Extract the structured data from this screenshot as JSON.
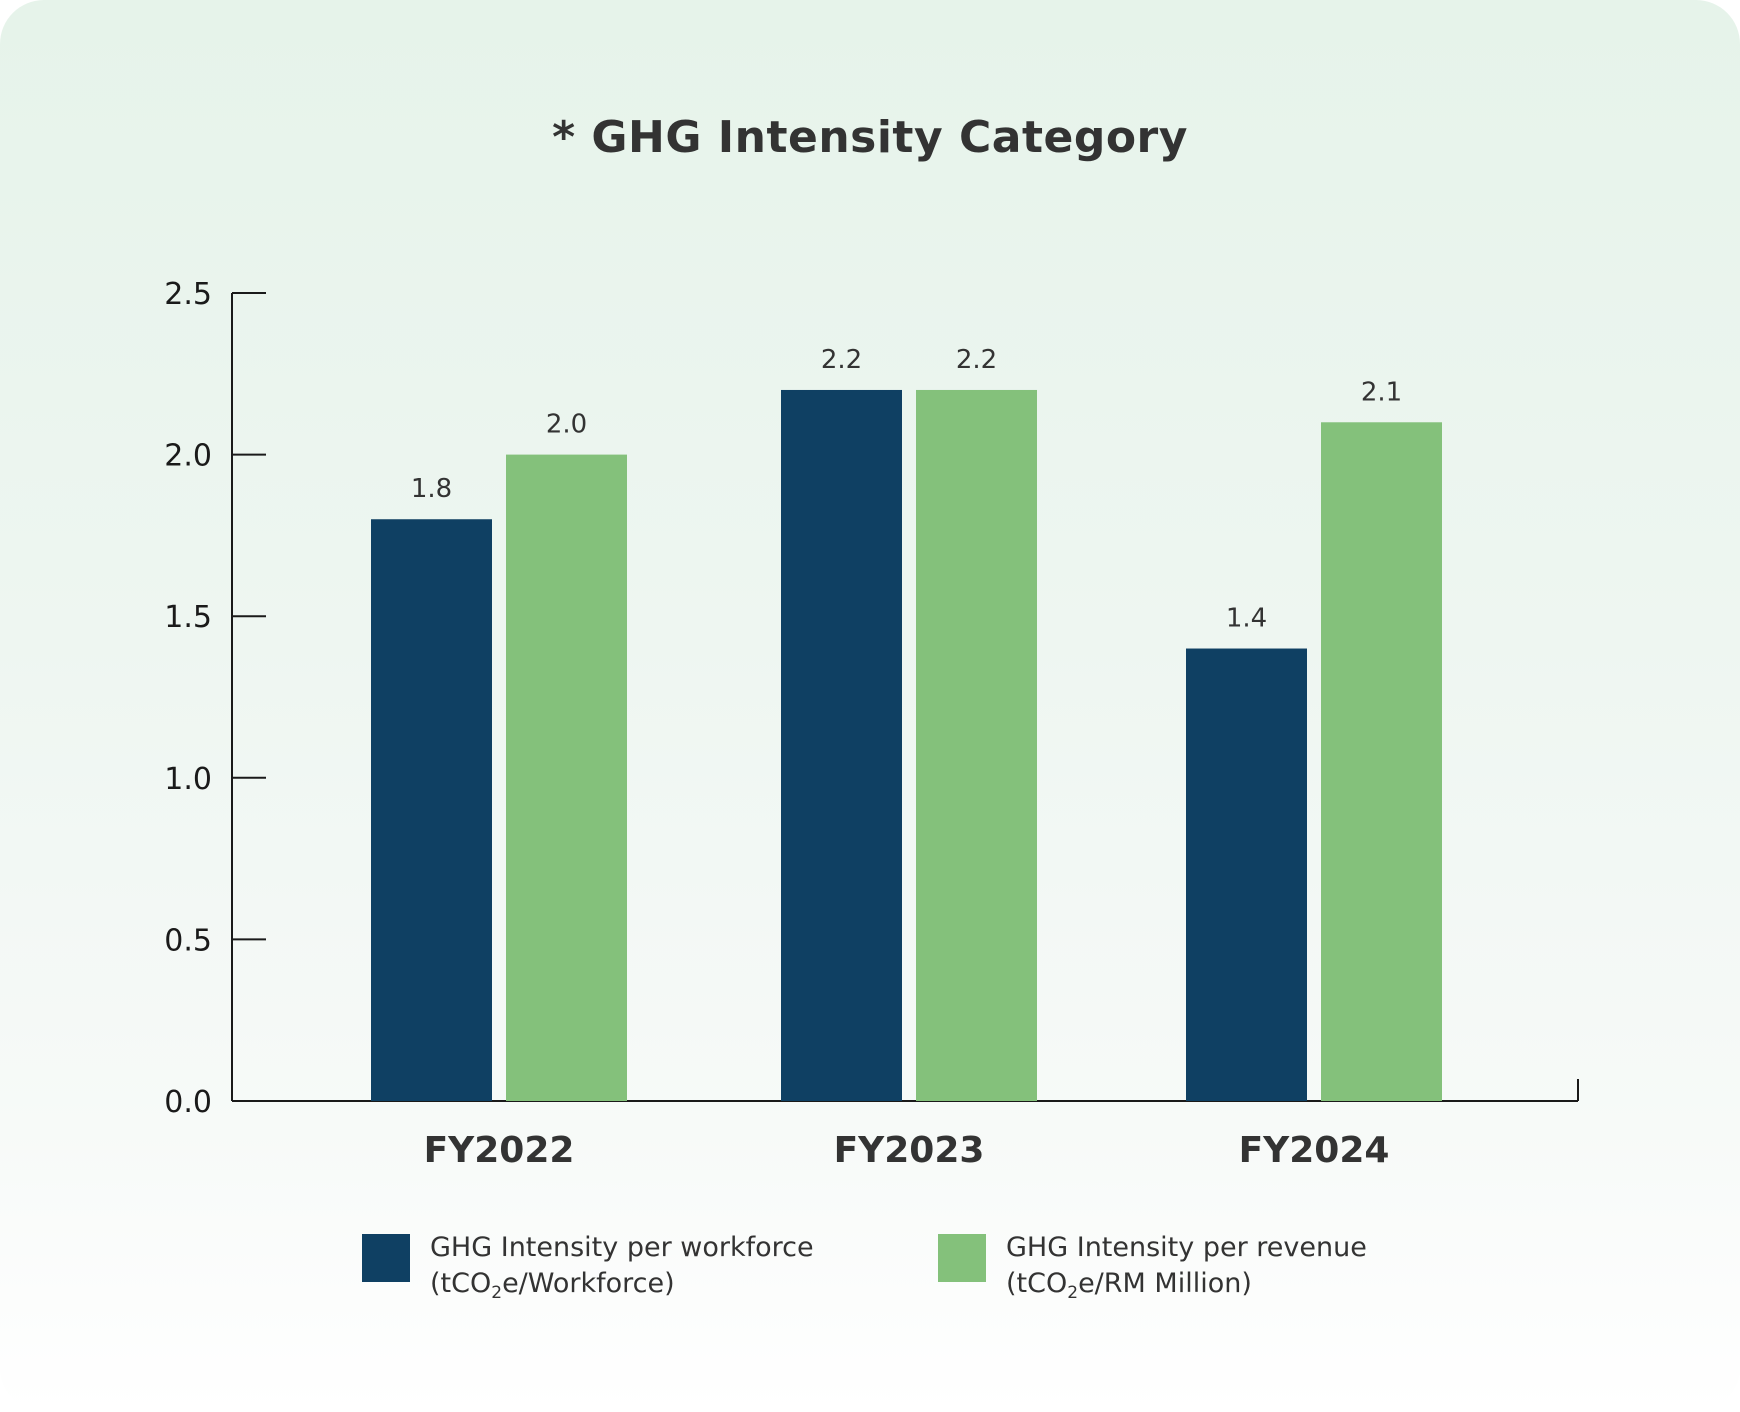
{
  "chart_data": {
    "type": "bar",
    "title": "* GHG Intensity Category",
    "categories": [
      "FY2022",
      "FY2023",
      "FY2024"
    ],
    "series": [
      {
        "name": "GHG Intensity per workforce (tCO2e/Workforce)",
        "color": "#0f4063",
        "values": [
          1.8,
          2.2,
          1.4
        ],
        "labels": [
          "1.8",
          "2.2",
          "1.4"
        ]
      },
      {
        "name": "GHG Intensity per revenue (tCO2e/RM Million)",
        "color": "#84c17b",
        "values": [
          2.0,
          2.2,
          2.1
        ],
        "labels": [
          "2.0",
          "2.2",
          "2.1"
        ]
      }
    ],
    "ylim": [
      0,
      2.5
    ],
    "yticks": [
      "0.0",
      "0.5",
      "1.0",
      "1.5",
      "2.0",
      "2.5"
    ],
    "xlabel": "",
    "ylabel": "",
    "grid": false,
    "legend_position": "bottom"
  },
  "legend": [
    {
      "line1": "GHG Intensity per workforce",
      "line2_prefix": "(tCO",
      "line2_sub": "2",
      "line2_suffix": "e/Workforce)",
      "color": "#0f4063"
    },
    {
      "line1": "GHG Intensity per revenue",
      "line2_prefix": "(tCO",
      "line2_sub": "2",
      "line2_suffix": "e/RM Million)",
      "color": "#84c17b"
    }
  ]
}
